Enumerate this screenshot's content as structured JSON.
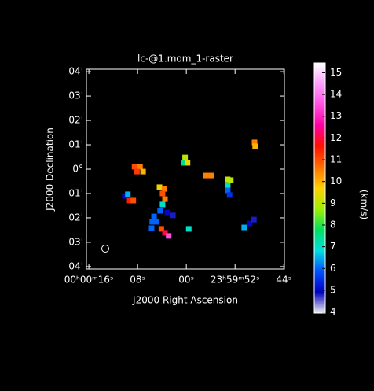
{
  "chart_data": {
    "type": "raster",
    "title": "lc-@1.mom_1-raster",
    "xlabel": "J2000 Right Ascension",
    "ylabel": "J2000 Declination",
    "colorbar_label": "(km/s)",
    "xlim": [
      16.4,
      -16.1
    ],
    "xticks": [
      {
        "value": 16,
        "label": "00ʰ00ᵐ16ˢ"
      },
      {
        "value": 8,
        "label": "08ˢ"
      },
      {
        "value": 0,
        "label": "00ˢ"
      },
      {
        "value": -8,
        "label": "23ʰ59ᵐ52ˢ"
      },
      {
        "value": -16,
        "label": "44ˢ"
      }
    ],
    "ylim": [
      -4.1,
      4.1
    ],
    "yticks": [
      {
        "value": 4,
        "label": "04'"
      },
      {
        "value": 3,
        "label": "03'"
      },
      {
        "value": 2,
        "label": "02'"
      },
      {
        "value": 1,
        "label": "01'"
      },
      {
        "value": 0,
        "label": "0°"
      },
      {
        "value": -1,
        "label": "01'"
      },
      {
        "value": -2,
        "label": "02'"
      },
      {
        "value": -3,
        "label": "03'"
      },
      {
        "value": -4,
        "label": "04'"
      }
    ],
    "clim": [
      3.95,
      15.45
    ],
    "cticks": [
      4,
      5,
      6,
      7,
      8,
      9,
      10,
      11,
      12,
      13,
      14,
      15
    ],
    "colormap": [
      "#f0f0f0",
      "#0000c0",
      "#0050ff",
      "#00e0e0",
      "#00e060",
      "#a0f000",
      "#ffd000",
      "#ff7000",
      "#ff1000",
      "#ff00a0",
      "#ff50e0",
      "#ffa0ff",
      "#ffffff"
    ],
    "x": [
      8.5,
      7.6,
      7.1,
      8.1,
      0.2,
      0.4,
      -0.2,
      -3.2,
      -4.1,
      -6.8,
      -6.8,
      -6.8,
      -7.1,
      -7.3,
      -11.2,
      -11.3,
      10.1,
      9.6,
      9.3,
      8.7,
      4.4,
      3.6,
      3.9,
      3.5,
      3.9,
      4.3,
      5.3,
      5.6,
      4.9,
      5.7,
      3.1,
      2.2,
      4.1,
      3.5,
      2.9,
      -0.4,
      -9.5,
      -10.4,
      -11.1
    ],
    "y": [
      0.1,
      0.1,
      -0.1,
      -0.1,
      0.48,
      0.26,
      0.26,
      -0.26,
      -0.26,
      -0.42,
      -0.65,
      -0.87,
      -1.06,
      -0.45,
      1.1,
      0.94,
      -1.1,
      -1.03,
      -1.29,
      -1.29,
      -0.74,
      -0.81,
      -1.0,
      -1.23,
      -1.45,
      -1.71,
      -1.94,
      -2.16,
      -2.16,
      -2.42,
      -1.78,
      -1.9,
      -2.45,
      -2.61,
      -2.74,
      -2.45,
      -2.39,
      -2.23,
      -2.07
    ],
    "values": [
      11,
      10.5,
      10,
      11.2,
      9,
      7.5,
      9.5,
      10.5,
      10.5,
      9,
      7,
      6,
      5.5,
      9,
      10.5,
      10,
      5,
      6.5,
      11.5,
      11,
      9.5,
      10.5,
      11,
      10.5,
      7,
      6,
      6,
      6,
      6,
      6,
      5,
      4.8,
      11,
      12,
      13.5,
      7,
      6.5,
      5,
      4.8
    ]
  }
}
